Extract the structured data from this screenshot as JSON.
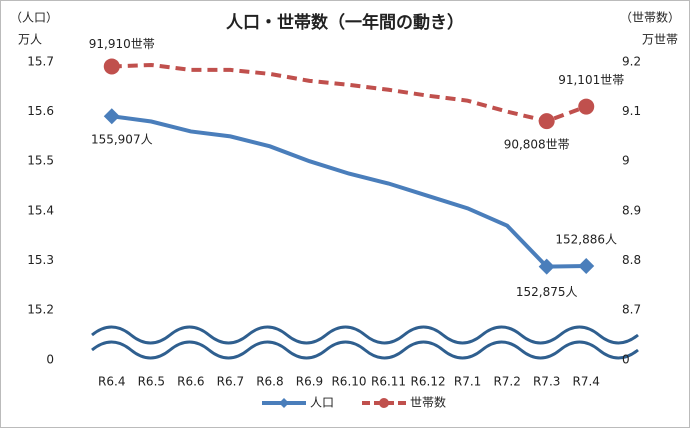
{
  "chart_data": {
    "type": "line",
    "title": "人口・世帯数（一年間の動き）",
    "y_label": "（人口）",
    "y_unit": "万人",
    "y2_label": "（世帯数）",
    "y2_unit": "万世帯",
    "categories": [
      "R6.4",
      "R6.5",
      "R6.6",
      "R6.7",
      "R6.8",
      "R6.9",
      "R6.10",
      "R6.11",
      "R6.12",
      "R7.1",
      "R7.2",
      "R7.3",
      "R7.4"
    ],
    "ylim": [
      0,
      15.7
    ],
    "yticks": [
      0,
      15.2,
      15.3,
      15.4,
      15.5,
      15.6,
      15.7
    ],
    "y2lim": [
      0,
      9.2
    ],
    "y2ticks": [
      0,
      8.7,
      8.8,
      8.9,
      9.0,
      9.1,
      9.2
    ],
    "axis_break": true,
    "series": [
      {
        "name": "人口",
        "color": "#4a7ebb",
        "marker": "diamond",
        "dashed": false,
        "values": [
          15.5907,
          15.58,
          15.56,
          15.55,
          15.53,
          15.5,
          15.475,
          15.455,
          15.43,
          15.405,
          15.37,
          15.2875,
          15.2886
        ],
        "value_labels": [
          "155,907人",
          null,
          null,
          null,
          null,
          null,
          null,
          null,
          null,
          null,
          null,
          "152,875人",
          "152,886人"
        ]
      },
      {
        "name": "世帯数",
        "color": "#c0504d",
        "marker": "circle",
        "dashed": true,
        "axis": "y2",
        "values": [
          9.191,
          9.194,
          9.184,
          9.184,
          9.176,
          9.162,
          9.154,
          9.144,
          9.132,
          9.122,
          9.1,
          9.0808,
          9.1101
        ],
        "value_labels": [
          "91,910世帯",
          null,
          null,
          null,
          null,
          null,
          null,
          null,
          null,
          null,
          null,
          "90,808世帯",
          "91,101世帯"
        ]
      }
    ]
  }
}
